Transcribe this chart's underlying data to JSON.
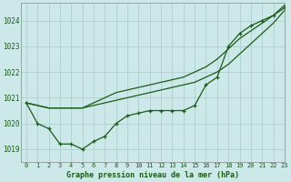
{
  "title": "Graphe pression niveau de la mer (hPa)",
  "background_color": "#cde8e8",
  "plot_bg_color": "#cde8e8",
  "grid_color": "#a8cccc",
  "line_color": "#1a5c1a",
  "marker_color": "#1a5c1a",
  "xlim": [
    -0.5,
    23
  ],
  "ylim": [
    1018.5,
    1024.7
  ],
  "yticks": [
    1019,
    1020,
    1021,
    1022,
    1023,
    1024
  ],
  "xticks": [
    0,
    1,
    2,
    3,
    4,
    5,
    6,
    7,
    8,
    9,
    10,
    11,
    12,
    13,
    14,
    15,
    16,
    17,
    18,
    19,
    20,
    21,
    22,
    23
  ],
  "series_straight1": [
    1020.8,
    1020.7,
    1020.6,
    1020.6,
    1020.6,
    1020.6,
    1020.7,
    1020.8,
    1020.9,
    1021.0,
    1021.1,
    1021.2,
    1021.3,
    1021.4,
    1021.5,
    1021.6,
    1021.8,
    1022.0,
    1022.3,
    1022.7,
    1023.1,
    1023.5,
    1023.9,
    1024.4
  ],
  "series_straight2": [
    1020.8,
    1020.7,
    1020.6,
    1020.6,
    1020.6,
    1020.6,
    1020.8,
    1021.0,
    1021.2,
    1021.3,
    1021.4,
    1021.5,
    1021.6,
    1021.7,
    1021.8,
    1022.0,
    1022.2,
    1022.5,
    1022.9,
    1023.3,
    1023.6,
    1023.9,
    1024.2,
    1024.6
  ],
  "series_wiggly": [
    1020.8,
    1020.0,
    1019.8,
    1019.2,
    1019.2,
    1019.0,
    1019.3,
    1019.5,
    1020.0,
    1020.3,
    1020.4,
    1020.5,
    1020.5,
    1020.5,
    1020.5,
    1020.7,
    1021.5,
    1021.8,
    1023.0,
    1023.5,
    1023.8,
    1024.0,
    1024.2,
    1024.5
  ]
}
